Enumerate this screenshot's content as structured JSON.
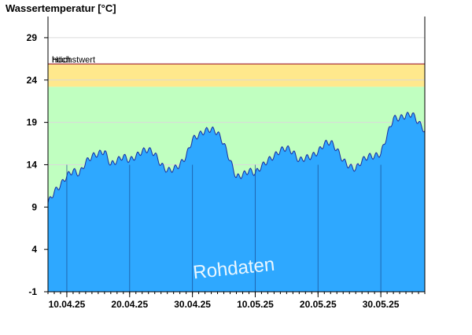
{
  "chart_data": {
    "type": "area",
    "title": "Wassertemperatur [°C]",
    "ylim": [
      -1,
      31.5
    ],
    "xlim": [
      "2025-04-07",
      "2025-06-06"
    ],
    "yticks": [
      -1,
      4,
      9,
      14,
      19,
      24,
      29
    ],
    "xticks": [
      {
        "date": "2025-04-10",
        "label": "10.04.25"
      },
      {
        "date": "2025-04-20",
        "label": "20.04.25"
      },
      {
        "date": "2025-04-30",
        "label": "30.04.25"
      },
      {
        "date": "2025-05-10",
        "label": "10.05.25"
      },
      {
        "date": "2025-05-20",
        "label": "20.05.25"
      },
      {
        "date": "2025-05-30",
        "label": "30.05.25"
      }
    ],
    "bands": [
      {
        "label": "hoch",
        "from": 23.2,
        "to": 25.9,
        "color": "#FFE88C"
      },
      {
        "label": "",
        "from": -1,
        "to": 23.2,
        "color": "#C0FFC0"
      }
    ],
    "threshold": {
      "label": "Höchstwert",
      "value": 25.9,
      "color": "#A02030"
    },
    "series_color": "#2EA8FF",
    "series_line_color": "#1A2EA0",
    "x": [
      "2025-04-07",
      "2025-04-08",
      "2025-04-09",
      "2025-04-10",
      "2025-04-11",
      "2025-04-12",
      "2025-04-13",
      "2025-04-14",
      "2025-04-15",
      "2025-04-16",
      "2025-04-17",
      "2025-04-18",
      "2025-04-19",
      "2025-04-20",
      "2025-04-21",
      "2025-04-22",
      "2025-04-23",
      "2025-04-24",
      "2025-04-25",
      "2025-04-26",
      "2025-04-27",
      "2025-04-28",
      "2025-04-29",
      "2025-04-30",
      "2025-05-01",
      "2025-05-02",
      "2025-05-03",
      "2025-05-04",
      "2025-05-05",
      "2025-05-06",
      "2025-05-07",
      "2025-05-08",
      "2025-05-09",
      "2025-05-10",
      "2025-05-11",
      "2025-05-12",
      "2025-05-13",
      "2025-05-14",
      "2025-05-15",
      "2025-05-16",
      "2025-05-17",
      "2025-05-18",
      "2025-05-19",
      "2025-05-20",
      "2025-05-21",
      "2025-05-22",
      "2025-05-23",
      "2025-05-24",
      "2025-05-25",
      "2025-05-26",
      "2025-05-27",
      "2025-05-28",
      "2025-05-29",
      "2025-05-30",
      "2025-05-31",
      "2025-06-01",
      "2025-06-02",
      "2025-06-03",
      "2025-06-04",
      "2025-06-05",
      "2025-06-06"
    ],
    "values": [
      9.5,
      10.8,
      11.6,
      12.7,
      13.3,
      12.9,
      14.3,
      15.0,
      15.3,
      15.6,
      14.0,
      14.5,
      15.0,
      14.5,
      15.0,
      15.6,
      15.8,
      15.3,
      14.0,
      13.3,
      13.5,
      14.0,
      15.0,
      17.0,
      17.5,
      18.0,
      18.2,
      17.8,
      16.5,
      14.5,
      12.5,
      12.8,
      13.3,
      13.0,
      13.8,
      14.5,
      15.0,
      15.7,
      16.0,
      15.5,
      14.5,
      14.8,
      15.0,
      15.5,
      16.5,
      16.7,
      15.8,
      14.5,
      13.8,
      13.5,
      14.5,
      15.0,
      15.0,
      15.3,
      17.5,
      19.5,
      19.5,
      19.8,
      20.0,
      19.0,
      18.0
    ],
    "watermark": "Rohdaten"
  }
}
